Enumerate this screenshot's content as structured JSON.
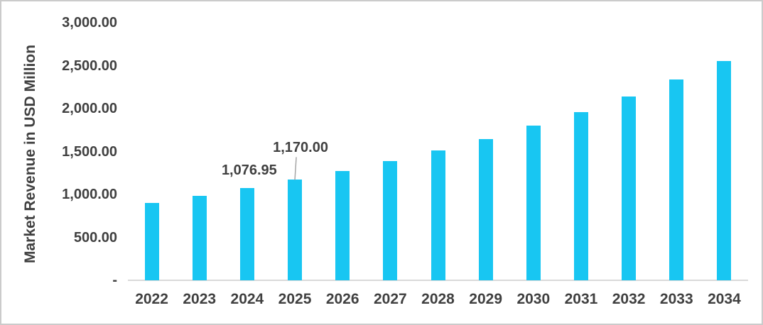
{
  "chart_data": {
    "type": "bar",
    "title": "",
    "xlabel": "",
    "ylabel": "Market Revenue in USD Million",
    "categories": [
      "2022",
      "2023",
      "2024",
      "2025",
      "2026",
      "2027",
      "2028",
      "2029",
      "2030",
      "2031",
      "2032",
      "2033",
      "2034"
    ],
    "series": [
      {
        "name": "Market Revenue in USD Million",
        "values": [
          904,
          986,
          1076.95,
          1170,
          1272,
          1389,
          1510,
          1647,
          1798,
          1956,
          2140,
          2337,
          2551
        ]
      }
    ],
    "ylim": [
      0,
      3000
    ],
    "grid": false,
    "legend_position": "none",
    "ytick_values": [
      3000,
      2500,
      2000,
      1500,
      1000,
      500,
      0
    ],
    "ytick_labels": [
      "3,000.00",
      "2,500.00",
      "2,000.00",
      "1,500.00",
      "1,000.00",
      "500.00",
      "-"
    ],
    "annotations": [
      {
        "category": "2024",
        "label": "1,076.95",
        "callout": false
      },
      {
        "category": "2025",
        "label": "1,170.00",
        "callout": true
      }
    ]
  },
  "colors": {
    "bar": "#18c6f2",
    "text": "#404040",
    "axis_line": "#d9d9d9",
    "leader_line": "#a6a6a6",
    "frame_border": "#cbcbcb",
    "background": "#ffffff"
  }
}
